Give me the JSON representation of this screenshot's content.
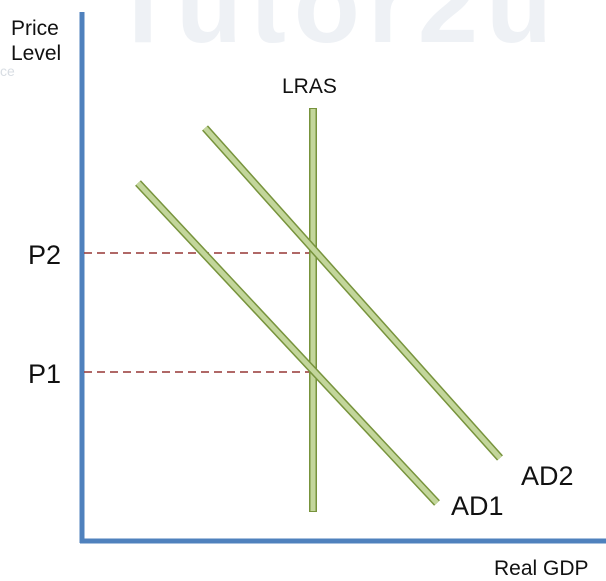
{
  "watermark": "Tutor2u",
  "ghost_text": "ce",
  "y_axis_label": "Price\nLevel",
  "x_axis_label": "Real GDP",
  "lras_label": "LRAS",
  "price_labels": {
    "p1": "P1",
    "p2": "P2"
  },
  "curve_labels": {
    "ad1": "AD1",
    "ad2": "AD2"
  },
  "colors": {
    "axis": "#4f81bd",
    "curve_fill": "#c3d69b",
    "curve_stroke": "#77933c",
    "guide": "#953735"
  }
}
